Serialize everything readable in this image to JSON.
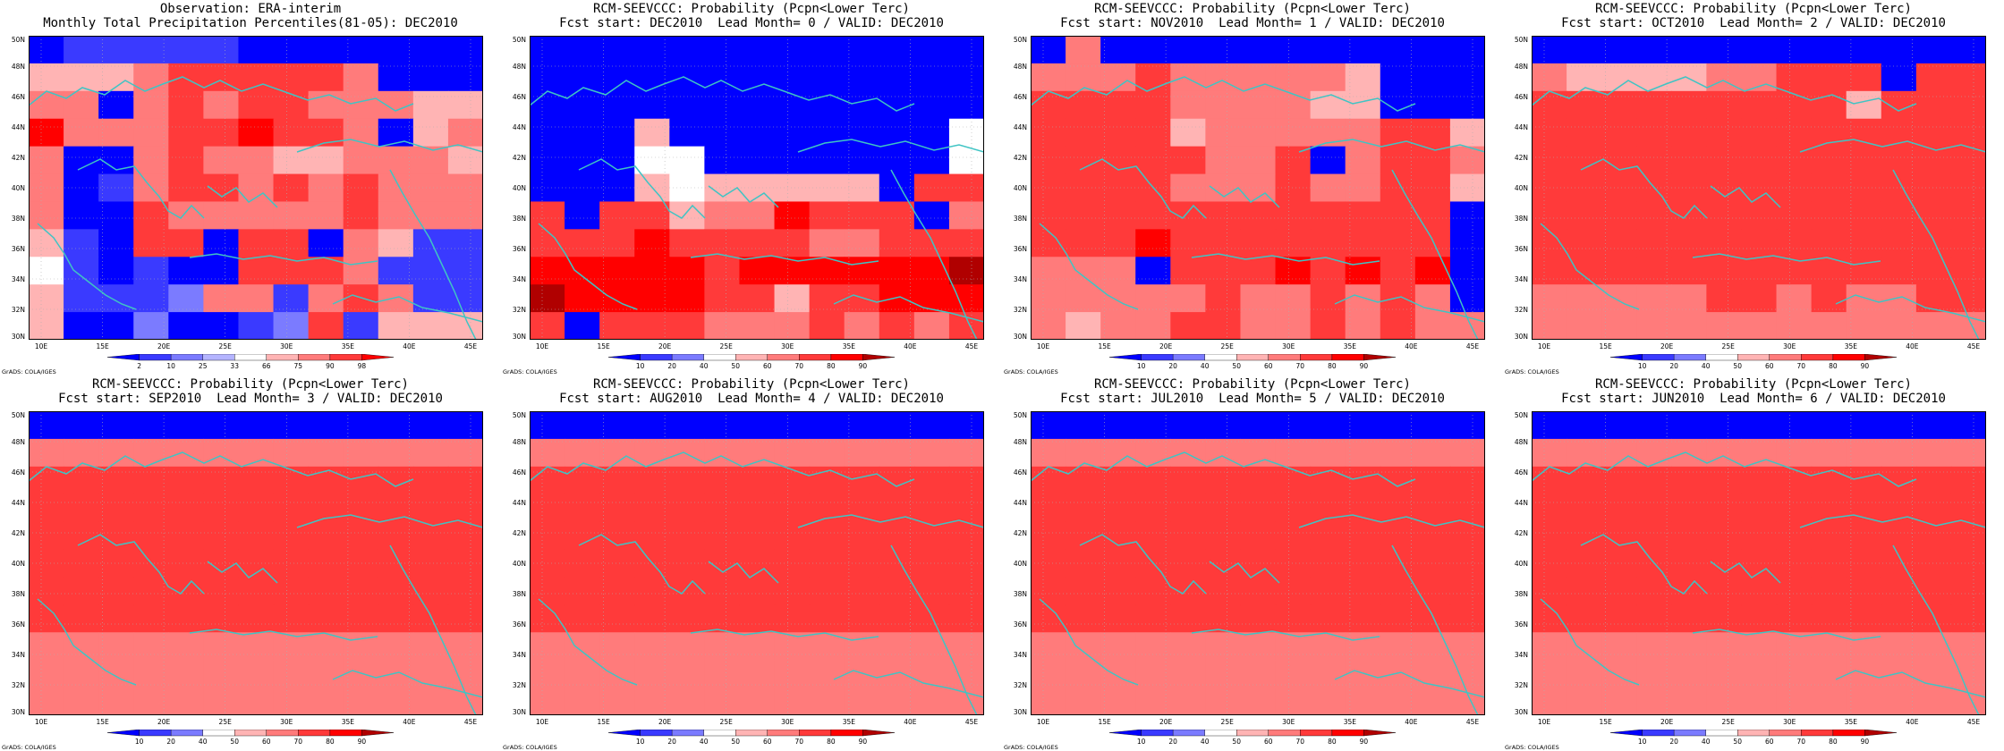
{
  "image": {
    "grads_label": "GrADS: COLA/IGES"
  },
  "axes": {
    "lat_labels": [
      "30N",
      "32N",
      "34N",
      "36N",
      "38N",
      "40N",
      "42N",
      "44N",
      "46N",
      "48N",
      "50N"
    ],
    "lon_labels": [
      "10E",
      "15E",
      "20E",
      "25E",
      "30E",
      "35E",
      "40E",
      "45E"
    ]
  },
  "colorbars": {
    "observation": {
      "labels": [
        "2",
        "10",
        "25",
        "33",
        "66",
        "75",
        "90",
        "98"
      ],
      "colors": [
        "#0000ff",
        "#3a3aff",
        "#7b7bff",
        "#b4b4ff",
        "#ffffff",
        "#ffb4b4",
        "#ff7b7b",
        "#ff3a3a",
        "#ff0000"
      ]
    },
    "probability": {
      "labels": [
        "10",
        "20",
        "40",
        "50",
        "60",
        "70",
        "80",
        "90"
      ],
      "colors": [
        "#0000ff",
        "#3a3aff",
        "#7b7bff",
        "#ffffff",
        "#ffb4b4",
        "#ff7b7b",
        "#ff3a3a",
        "#ff0000",
        "#b00000"
      ]
    }
  },
  "panels": [
    {
      "title1": "Observation: ERA-interim",
      "title2": "Monthly Total Precipitation Percentiles(81-05): DEC2010",
      "colorbar": "observation",
      "grid": [
        "0111110000000",
        "5556777776000",
        "6606767766655",
        "8666778776056",
        "6006766556665",
        "6016776767666",
        "6007666667666",
        "5107707706511",
        "4101007776111",
        "5111266167611",
        "5002001271555"
      ]
    },
    {
      "title1": "RCM-SEEVCCC: Probability (Pcpn<Lower Terc)",
      "title2": "Fcst start: DEC2010  Lead Month= 0 / VALID: DEC2010",
      "colorbar": "probability",
      "grid": [
        "0000000000000",
        "0000000000000",
        "0000000000000",
        "0004000000003",
        "0003300000003",
        "0004344444066",
        "6066455766605",
        "6667666655666",
        "7777767777778",
        "8777766466777",
        "6066655565656"
      ]
    },
    {
      "title1": "RCM-SEEVCCC: Probability (Pcpn<Lower Terc)",
      "title2": "Fcst start: NOV2010  Lead Month= 1 / VALID: DEC2010",
      "colorbar": "probability",
      "grid": [
        "0500000000000",
        "5556555554000",
        "6666555544000",
        "6666455555664",
        "6666655605665",
        "6666555655664",
        "6666666666660",
        "6667666666660",
        "5550666767670",
        "5555565565650",
        "5455665565655"
      ]
    },
    {
      "title1": "RCM-SEEVCCC: Probability (Pcpn<Lower Terc)",
      "title2": "Fcst start: OCT2010  Lead Month= 2 / VALID: DEC2010",
      "colorbar": "probability",
      "grid": [
        "0000000000000",
        "5444455666066",
        "6666666664666",
        "6666666666666",
        "6666666666666",
        "6666666666666",
        "6666666666666",
        "6666666666666",
        "6666666666666",
        "5555566565566",
        "5555555555555"
      ]
    },
    {
      "title1": "RCM-SEEVCCC: Probability (Pcpn<Lower Terc)",
      "title2": "Fcst start: SEP2010  Lead Month= 3 / VALID: DEC2010",
      "colorbar": "probability",
      "grid": [
        "0000000000000",
        "5555555555555",
        "6666666666666",
        "6666666666666",
        "6666666666666",
        "6666666666666",
        "6666666666666",
        "6666666666666",
        "5555555555555",
        "5555555555555",
        "5555555555555"
      ]
    },
    {
      "title1": "RCM-SEEVCCC: Probability (Pcpn<Lower Terc)",
      "title2": "Fcst start: AUG2010  Lead Month= 4 / VALID: DEC2010",
      "colorbar": "probability",
      "grid": [
        "0000000000000",
        "5555555555555",
        "6666666666666",
        "6666666666666",
        "6666666666666",
        "6666666666666",
        "6666666666666",
        "6666666666666",
        "5555555555555",
        "5555555555555",
        "5555555555555"
      ]
    },
    {
      "title1": "RCM-SEEVCCC: Probability (Pcpn<Lower Terc)",
      "title2": "Fcst start: JUL2010  Lead Month= 5 / VALID: DEC2010",
      "colorbar": "probability",
      "grid": [
        "0000000000000",
        "5555555555555",
        "6666666666666",
        "6666666666666",
        "6666666666666",
        "6666666666666",
        "6666666666666",
        "6666666666666",
        "5555555555555",
        "5555555555555",
        "5555555555555"
      ]
    },
    {
      "title1": "RCM-SEEVCCC: Probability (Pcpn<Lower Terc)",
      "title2": "Fcst start: JUN2010  Lead Month= 6 / VALID: DEC2010",
      "colorbar": "probability",
      "grid": [
        "0000000000000",
        "5555555555555",
        "6666666666666",
        "6666666666666",
        "6666666666666",
        "6666666666666",
        "6666666666666",
        "6666666666666",
        "5555555555555",
        "5555555555555",
        "5555555555555"
      ]
    }
  ]
}
